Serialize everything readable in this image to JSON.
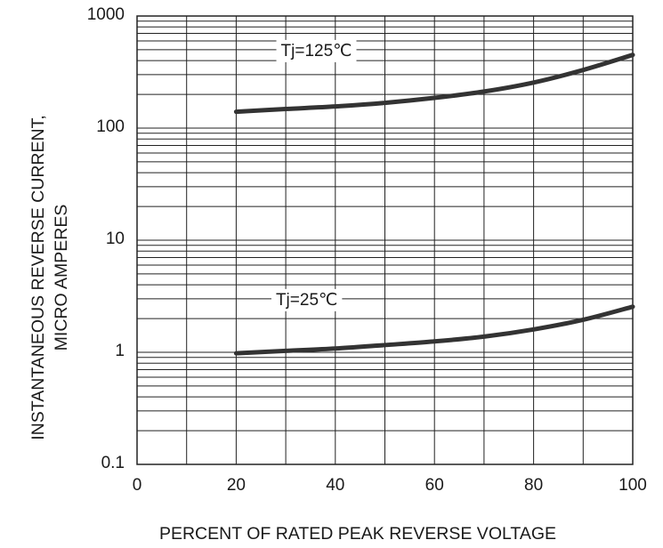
{
  "chart_data": {
    "type": "line",
    "xlabel": "PERCENT OF RATED PEAK REVERSE VOLTAGE",
    "ylabel": "INSTANTANEOUS REVERSE CURRENT, MICRO AMPERES",
    "ylabel_lines": [
      "INSTANTANEOUS REVERSE CURRENT,",
      "MICRO AMPERES"
    ],
    "xlim": [
      0,
      100
    ],
    "ylim": [
      0.1,
      1000
    ],
    "yscale": "log",
    "grid": true,
    "x_ticks": [
      0,
      10,
      20,
      30,
      40,
      50,
      60,
      70,
      80,
      90,
      100
    ],
    "x_tick_labels": [
      "0",
      "20",
      "40",
      "60",
      "80",
      "100"
    ],
    "x_tick_label_values": [
      0,
      20,
      40,
      60,
      80,
      100
    ],
    "y_tick_labels": [
      "0.1",
      "1",
      "10",
      "100",
      "1000"
    ],
    "y_tick_label_values": [
      0.1,
      1,
      10,
      100,
      1000
    ],
    "series": [
      {
        "name": "Tj=125℃",
        "x": [
          20,
          30,
          40,
          50,
          60,
          70,
          80,
          90,
          100
        ],
        "y": [
          140,
          148,
          156,
          168,
          186,
          212,
          255,
          330,
          450
        ]
      },
      {
        "name": "Tj=25℃",
        "x": [
          20,
          30,
          40,
          50,
          60,
          70,
          80,
          90,
          100
        ],
        "y": [
          0.98,
          1.03,
          1.08,
          1.16,
          1.25,
          1.38,
          1.6,
          1.95,
          2.55
        ]
      }
    ],
    "annotations": [
      {
        "text": "Tj=125℃",
        "x": 29,
        "y": 500
      },
      {
        "text": "Tj=25℃",
        "x": 28,
        "y": 3.0
      }
    ],
    "line_color": "#333333",
    "grid_color": "#222222"
  }
}
